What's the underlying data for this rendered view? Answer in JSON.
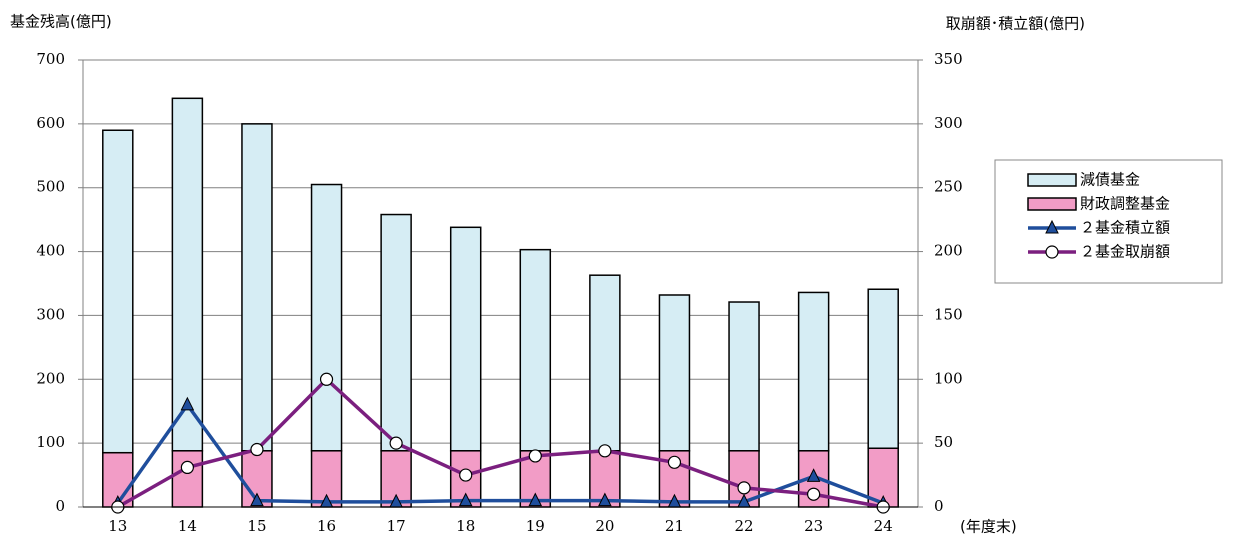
{
  "chart_data": {
    "type": "stacked-bar-line",
    "y_label": "基金残高(億円)",
    "y2_label": "取崩額･積立額(億円)",
    "x_label": "(年度末)",
    "categories": [
      "13",
      "14",
      "15",
      "16",
      "17",
      "18",
      "19",
      "20",
      "21",
      "22",
      "23",
      "24"
    ],
    "ylim": [
      0,
      700
    ],
    "yticks": [
      0,
      100,
      200,
      300,
      400,
      500,
      600,
      700
    ],
    "y2lim": [
      0,
      350
    ],
    "y2ticks": [
      0,
      50,
      100,
      150,
      200,
      250,
      300,
      350
    ],
    "grid": true,
    "legend": "right",
    "series": [
      {
        "name": "減債基金",
        "kind": "bar",
        "color": "#d6edf4",
        "values": [
          505,
          552,
          512,
          417,
          370,
          350,
          315,
          275,
          244,
          233,
          248,
          249
        ]
      },
      {
        "name": "財政調整基金",
        "kind": "bar",
        "color": "#f29cc6",
        "values": [
          85,
          88,
          88,
          88,
          88,
          88,
          88,
          88,
          88,
          88,
          88,
          92
        ]
      },
      {
        "name": "２基金積立額",
        "kind": "line",
        "axis": "y2",
        "marker": "triangle",
        "color": "#1f4e9c",
        "values": [
          3,
          80,
          5,
          4,
          4,
          5,
          5,
          5,
          4,
          4,
          24,
          3
        ]
      },
      {
        "name": "２基金取崩額",
        "kind": "line",
        "axis": "y2",
        "marker": "circle",
        "color": "#7b1f7f",
        "values": [
          0,
          31,
          45,
          100,
          50,
          25,
          40,
          44,
          35,
          15,
          10,
          0
        ]
      }
    ]
  }
}
